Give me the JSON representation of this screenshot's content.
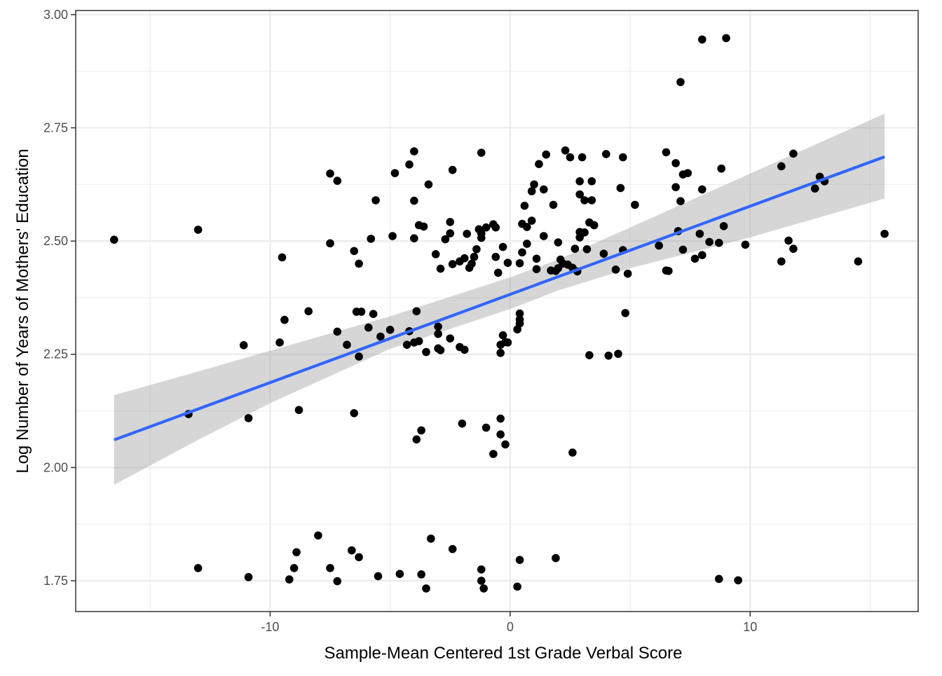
{
  "chart_data": {
    "type": "scatter",
    "title": "",
    "xlabel": "Sample-Mean Centered 1st Grade Verbal Score",
    "ylabel": "Log Number of Years of Mothers' Education",
    "xlim": [
      -18.1,
      17.0
    ],
    "ylim": [
      1.682,
      3.009
    ],
    "x_ticks": [
      -10,
      0,
      10
    ],
    "x_tick_labels": [
      "-10",
      "0",
      "10"
    ],
    "x_minor_ticks": [
      -15,
      -5,
      5,
      15
    ],
    "y_ticks": [
      1.75,
      2.0,
      2.25,
      2.5,
      2.75,
      3.0
    ],
    "y_tick_labels": [
      "1.75",
      "2.00",
      "2.25",
      "2.50",
      "2.75",
      "3.00"
    ],
    "y_minor_ticks": [
      1.875,
      2.125,
      2.375,
      2.625,
      2.875
    ],
    "grid": true,
    "legend": "none",
    "colors": {
      "points": "#000000",
      "fit_line": "#3366FF",
      "ribbon": "#999999",
      "grid_major": "#ebebeb",
      "panel_border": "#333333"
    },
    "points": [
      {
        "x": -16.5,
        "y": 2.503
      },
      {
        "x": -13.4,
        "y": 2.118
      },
      {
        "x": -13.0,
        "y": 2.525
      },
      {
        "x": -13.0,
        "y": 1.778
      },
      {
        "x": -11.1,
        "y": 2.27
      },
      {
        "x": -10.9,
        "y": 2.109
      },
      {
        "x": -10.9,
        "y": 1.758
      },
      {
        "x": -9.6,
        "y": 2.276
      },
      {
        "x": -9.5,
        "y": 2.464
      },
      {
        "x": -9.4,
        "y": 2.326
      },
      {
        "x": -9.2,
        "y": 1.753
      },
      {
        "x": -9.0,
        "y": 1.778
      },
      {
        "x": -8.9,
        "y": 1.813
      },
      {
        "x": -8.8,
        "y": 2.127
      },
      {
        "x": -8.4,
        "y": 2.345
      },
      {
        "x": -8.0,
        "y": 1.85
      },
      {
        "x": -7.5,
        "y": 2.649
      },
      {
        "x": -7.5,
        "y": 2.495
      },
      {
        "x": -7.5,
        "y": 1.778
      },
      {
        "x": -7.2,
        "y": 2.633
      },
      {
        "x": -7.2,
        "y": 2.3
      },
      {
        "x": -7.2,
        "y": 1.749
      },
      {
        "x": -6.8,
        "y": 2.271
      },
      {
        "x": -6.6,
        "y": 1.817
      },
      {
        "x": -6.5,
        "y": 2.478
      },
      {
        "x": -6.5,
        "y": 2.12
      },
      {
        "x": -6.4,
        "y": 2.344
      },
      {
        "x": -6.3,
        "y": 2.45
      },
      {
        "x": -6.3,
        "y": 2.245
      },
      {
        "x": -6.3,
        "y": 1.802
      },
      {
        "x": -6.2,
        "y": 2.344
      },
      {
        "x": -5.9,
        "y": 2.309
      },
      {
        "x": -5.8,
        "y": 2.505
      },
      {
        "x": -5.7,
        "y": 2.339
      },
      {
        "x": -5.6,
        "y": 2.59
      },
      {
        "x": -5.5,
        "y": 1.76
      },
      {
        "x": -5.4,
        "y": 2.289
      },
      {
        "x": -5.0,
        "y": 2.304
      },
      {
        "x": -4.9,
        "y": 2.511
      },
      {
        "x": -4.8,
        "y": 2.65
      },
      {
        "x": -4.6,
        "y": 1.765
      },
      {
        "x": -4.3,
        "y": 2.271
      },
      {
        "x": -4.2,
        "y": 2.669
      },
      {
        "x": -4.2,
        "y": 2.301
      },
      {
        "x": -4.0,
        "y": 2.698
      },
      {
        "x": -4.0,
        "y": 2.589
      },
      {
        "x": -4.0,
        "y": 2.506
      },
      {
        "x": -4.0,
        "y": 2.276
      },
      {
        "x": -3.9,
        "y": 2.345
      },
      {
        "x": -3.9,
        "y": 2.062
      },
      {
        "x": -3.8,
        "y": 2.535
      },
      {
        "x": -3.8,
        "y": 2.279
      },
      {
        "x": -3.7,
        "y": 2.082
      },
      {
        "x": -3.7,
        "y": 1.764
      },
      {
        "x": -3.6,
        "y": 2.532
      },
      {
        "x": -3.5,
        "y": 1.733
      },
      {
        "x": -3.5,
        "y": 2.255
      },
      {
        "x": -3.4,
        "y": 2.625
      },
      {
        "x": -3.3,
        "y": 1.843
      },
      {
        "x": -3.1,
        "y": 2.471
      },
      {
        "x": -3.0,
        "y": 2.311
      },
      {
        "x": -3.0,
        "y": 2.295
      },
      {
        "x": -3.0,
        "y": 2.263
      },
      {
        "x": -2.9,
        "y": 2.439
      },
      {
        "x": -2.9,
        "y": 2.259
      },
      {
        "x": -2.7,
        "y": 2.504
      },
      {
        "x": -2.5,
        "y": 2.542
      },
      {
        "x": -2.5,
        "y": 2.517
      },
      {
        "x": -2.5,
        "y": 2.285
      },
      {
        "x": -2.4,
        "y": 2.657
      },
      {
        "x": -2.4,
        "y": 2.449
      },
      {
        "x": -2.4,
        "y": 1.82
      },
      {
        "x": -2.1,
        "y": 2.455
      },
      {
        "x": -2.1,
        "y": 2.266
      },
      {
        "x": -2.0,
        "y": 2.097
      },
      {
        "x": -1.9,
        "y": 2.462
      },
      {
        "x": -1.9,
        "y": 2.26
      },
      {
        "x": -1.8,
        "y": 2.516
      },
      {
        "x": -1.7,
        "y": 2.441
      },
      {
        "x": -1.6,
        "y": 2.45
      },
      {
        "x": -1.5,
        "y": 2.465
      },
      {
        "x": -1.4,
        "y": 2.482
      },
      {
        "x": -1.3,
        "y": 2.526
      },
      {
        "x": -1.2,
        "y": 2.695
      },
      {
        "x": -1.2,
        "y": 2.517
      },
      {
        "x": -1.2,
        "y": 2.507
      },
      {
        "x": -1.2,
        "y": 1.775
      },
      {
        "x": -1.2,
        "y": 1.75
      },
      {
        "x": -1.1,
        "y": 1.733
      },
      {
        "x": -1.0,
        "y": 2.53
      },
      {
        "x": -1.0,
        "y": 2.088
      },
      {
        "x": -0.7,
        "y": 2.03
      },
      {
        "x": -0.7,
        "y": 2.537
      },
      {
        "x": -0.6,
        "y": 2.53
      },
      {
        "x": -0.6,
        "y": 2.465
      },
      {
        "x": -0.5,
        "y": 2.43
      },
      {
        "x": -0.4,
        "y": 2.271
      },
      {
        "x": -0.4,
        "y": 2.253
      },
      {
        "x": -0.4,
        "y": 2.108
      },
      {
        "x": -0.4,
        "y": 2.073
      },
      {
        "x": -0.3,
        "y": 2.487
      },
      {
        "x": -0.3,
        "y": 2.292
      },
      {
        "x": -0.2,
        "y": 2.051
      },
      {
        "x": -0.2,
        "y": 2.277
      },
      {
        "x": -0.1,
        "y": 2.276
      },
      {
        "x": -0.1,
        "y": 2.452
      },
      {
        "x": 0.3,
        "y": 2.305
      },
      {
        "x": 0.3,
        "y": 1.737
      },
      {
        "x": 0.4,
        "y": 2.451
      },
      {
        "x": 0.4,
        "y": 2.318
      },
      {
        "x": 0.4,
        "y": 2.34
      },
      {
        "x": 0.4,
        "y": 2.327
      },
      {
        "x": 0.4,
        "y": 1.796
      },
      {
        "x": 0.5,
        "y": 2.475
      },
      {
        "x": 0.5,
        "y": 2.538
      },
      {
        "x": 0.6,
        "y": 2.578
      },
      {
        "x": 0.7,
        "y": 2.531
      },
      {
        "x": 0.7,
        "y": 2.494
      },
      {
        "x": 0.9,
        "y": 2.545
      },
      {
        "x": 0.9,
        "y": 2.61
      },
      {
        "x": 1.0,
        "y": 2.625
      },
      {
        "x": 1.1,
        "y": 2.461
      },
      {
        "x": 1.1,
        "y": 2.438
      },
      {
        "x": 1.2,
        "y": 2.67
      },
      {
        "x": 1.4,
        "y": 2.614
      },
      {
        "x": 1.4,
        "y": 2.511
      },
      {
        "x": 1.5,
        "y": 2.691
      },
      {
        "x": 1.7,
        "y": 2.435
      },
      {
        "x": 1.8,
        "y": 2.58
      },
      {
        "x": 1.9,
        "y": 1.8
      },
      {
        "x": 1.9,
        "y": 2.434
      },
      {
        "x": 2.0,
        "y": 2.497
      },
      {
        "x": 2.0,
        "y": 2.44
      },
      {
        "x": 2.1,
        "y": 2.459
      },
      {
        "x": 2.2,
        "y": 2.45
      },
      {
        "x": 2.3,
        "y": 2.7
      },
      {
        "x": 2.4,
        "y": 2.448
      },
      {
        "x": 2.5,
        "y": 2.685
      },
      {
        "x": 2.6,
        "y": 2.441
      },
      {
        "x": 2.6,
        "y": 2.033
      },
      {
        "x": 2.7,
        "y": 2.483
      },
      {
        "x": 2.8,
        "y": 2.433
      },
      {
        "x": 2.9,
        "y": 2.632
      },
      {
        "x": 2.9,
        "y": 2.603
      },
      {
        "x": 2.9,
        "y": 2.52
      },
      {
        "x": 2.9,
        "y": 2.508
      },
      {
        "x": 3.0,
        "y": 2.685
      },
      {
        "x": 3.1,
        "y": 2.59
      },
      {
        "x": 3.1,
        "y": 2.519
      },
      {
        "x": 3.2,
        "y": 2.482
      },
      {
        "x": 3.3,
        "y": 2.248
      },
      {
        "x": 3.3,
        "y": 2.541
      },
      {
        "x": 3.4,
        "y": 2.632
      },
      {
        "x": 3.4,
        "y": 2.59
      },
      {
        "x": 3.5,
        "y": 2.535
      },
      {
        "x": 3.9,
        "y": 2.472
      },
      {
        "x": 4.0,
        "y": 2.692
      },
      {
        "x": 4.1,
        "y": 2.247
      },
      {
        "x": 4.4,
        "y": 2.437
      },
      {
        "x": 4.5,
        "y": 2.251
      },
      {
        "x": 4.6,
        "y": 2.617
      },
      {
        "x": 4.7,
        "y": 2.685
      },
      {
        "x": 4.7,
        "y": 2.48
      },
      {
        "x": 4.8,
        "y": 2.341
      },
      {
        "x": 4.9,
        "y": 2.428
      },
      {
        "x": 5.2,
        "y": 2.58
      },
      {
        "x": 6.2,
        "y": 2.49
      },
      {
        "x": 6.5,
        "y": 2.696
      },
      {
        "x": 6.5,
        "y": 2.435
      },
      {
        "x": 6.6,
        "y": 2.434
      },
      {
        "x": 6.9,
        "y": 2.672
      },
      {
        "x": 6.9,
        "y": 2.619
      },
      {
        "x": 7.0,
        "y": 2.522
      },
      {
        "x": 7.1,
        "y": 2.588
      },
      {
        "x": 7.1,
        "y": 2.851
      },
      {
        "x": 7.2,
        "y": 2.481
      },
      {
        "x": 7.2,
        "y": 2.647
      },
      {
        "x": 7.4,
        "y": 2.65
      },
      {
        "x": 7.7,
        "y": 2.461
      },
      {
        "x": 7.9,
        "y": 2.516
      },
      {
        "x": 8.0,
        "y": 2.945
      },
      {
        "x": 8.0,
        "y": 2.614
      },
      {
        "x": 8.0,
        "y": 2.469
      },
      {
        "x": 8.3,
        "y": 2.498
      },
      {
        "x": 8.7,
        "y": 2.496
      },
      {
        "x": 8.7,
        "y": 1.754
      },
      {
        "x": 8.8,
        "y": 2.66
      },
      {
        "x": 8.9,
        "y": 2.533
      },
      {
        "x": 9.0,
        "y": 2.948
      },
      {
        "x": 9.5,
        "y": 1.751
      },
      {
        "x": 9.8,
        "y": 2.492
      },
      {
        "x": 11.3,
        "y": 2.455
      },
      {
        "x": 11.3,
        "y": 2.665
      },
      {
        "x": 11.6,
        "y": 2.501
      },
      {
        "x": 11.8,
        "y": 2.483
      },
      {
        "x": 11.8,
        "y": 2.693
      },
      {
        "x": 12.7,
        "y": 2.616
      },
      {
        "x": 12.9,
        "y": 2.642
      },
      {
        "x": 13.1,
        "y": 2.632
      },
      {
        "x": 14.5,
        "y": 2.455
      },
      {
        "x": 15.6,
        "y": 2.516
      }
    ],
    "fit_line": {
      "x": [
        -16.5,
        15.6
      ],
      "y": [
        2.061,
        2.686
      ]
    },
    "confidence_band": {
      "x": [
        -16.5,
        -13.0,
        -10.0,
        -5.0,
        0.0,
        2.0,
        5.0,
        10.0,
        15.6
      ],
      "lower": [
        1.962,
        2.061,
        2.142,
        2.262,
        2.35,
        2.391,
        2.44,
        2.508,
        2.594
      ],
      "upper": [
        2.16,
        2.212,
        2.258,
        2.334,
        2.42,
        2.459,
        2.53,
        2.649,
        2.781
      ]
    }
  }
}
